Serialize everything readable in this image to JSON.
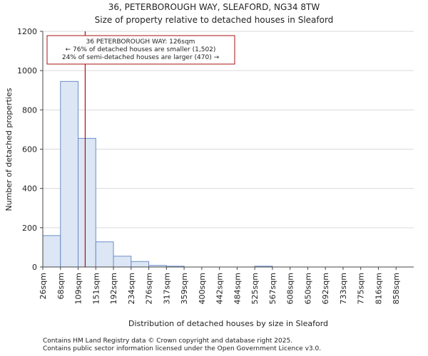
{
  "chart_data": {
    "type": "bar",
    "title_line1": "36, PETERBOROUGH WAY, SLEAFORD, NG34 8TW",
    "title_line2": "Size of property relative to detached houses in Sleaford",
    "xlabel": "Distribution of detached houses by size in Sleaford",
    "ylabel": "Number of detached properties",
    "categories": [
      "26sqm",
      "68sqm",
      "109sqm",
      "151sqm",
      "192sqm",
      "234sqm",
      "276sqm",
      "317sqm",
      "359sqm",
      "400sqm",
      "442sqm",
      "484sqm",
      "525sqm",
      "567sqm",
      "608sqm",
      "650sqm",
      "692sqm",
      "733sqm",
      "775sqm",
      "816sqm",
      "858sqm"
    ],
    "values": [
      160,
      945,
      655,
      128,
      55,
      28,
      8,
      4,
      0,
      0,
      0,
      0,
      4,
      0,
      0,
      0,
      0,
      0,
      0,
      0,
      0
    ],
    "ylim": [
      0,
      1200
    ],
    "yticks": [
      "0",
      "200",
      "400",
      "600",
      "800",
      "1000",
      "1200"
    ],
    "grid": true,
    "marker_bin_position": 2.4,
    "annotation": {
      "line1": "36 PETERBOROUGH WAY: 126sqm",
      "line2": "← 76% of detached houses are smaller (1,502)",
      "line3": "24% of semi-detached houses are larger (470) →"
    },
    "colors": {
      "bar_fill": "#dce6f4",
      "bar_edge": "#6b8ec8",
      "marker": "#aa1111",
      "grid": "#d9d9d9"
    }
  },
  "footer": {
    "line1": "Contains HM Land Registry data © Crown copyright and database right 2025.",
    "line2": "Contains public sector information licensed under the Open Government Licence v3.0."
  }
}
